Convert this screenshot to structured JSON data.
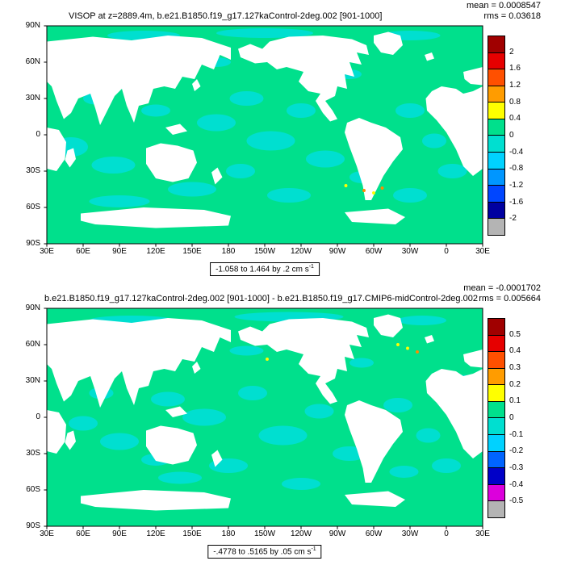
{
  "axes": {
    "lat_labels": [
      "90N",
      "60N",
      "30N",
      "0",
      "30S",
      "60S",
      "90S"
    ],
    "lon_labels": [
      "30E",
      "60E",
      "90E",
      "120E",
      "150E",
      "180",
      "150W",
      "120W",
      "90W",
      "60W",
      "30W",
      "0",
      "30E"
    ]
  },
  "map": {
    "ocean_color": "#00e08c",
    "patch_color": "#00dfd0",
    "land_color": "#ffffff",
    "land": [
      [
        [
          0,
          13
        ],
        [
          38,
          9
        ],
        [
          70,
          12
        ],
        [
          100,
          8
        ],
        [
          128,
          10
        ],
        [
          152,
          18
        ],
        [
          152,
          28
        ],
        [
          143,
          24
        ],
        [
          138,
          36
        ],
        [
          128,
          32
        ],
        [
          122,
          44
        ],
        [
          112,
          42
        ],
        [
          106,
          52
        ],
        [
          97,
          50
        ],
        [
          88,
          52
        ],
        [
          84,
          64
        ],
        [
          76,
          66
        ],
        [
          72,
          80
        ],
        [
          66,
          66
        ],
        [
          62,
          52
        ],
        [
          56,
          58
        ],
        [
          50,
          70
        ],
        [
          44,
          82
        ],
        [
          40,
          68
        ],
        [
          36,
          56
        ],
        [
          26,
          60
        ],
        [
          20,
          72
        ],
        [
          14,
          77
        ],
        [
          8,
          62
        ],
        [
          4,
          50
        ],
        [
          0,
          46
        ]
      ],
      [
        [
          120,
          48
        ],
        [
          124,
          44
        ],
        [
          127,
          50
        ],
        [
          122,
          54
        ]
      ],
      [
        [
          0,
          84
        ],
        [
          10,
          86
        ],
        [
          16,
          96
        ],
        [
          15,
          110
        ],
        [
          8,
          120
        ],
        [
          0,
          118
        ]
      ],
      [
        [
          17,
          103
        ],
        [
          22,
          101
        ],
        [
          24,
          110
        ],
        [
          19,
          117
        ],
        [
          15,
          111
        ]
      ],
      [
        [
          82,
          101
        ],
        [
          94,
          97
        ],
        [
          108,
          99
        ],
        [
          121,
          103
        ],
        [
          124,
          113
        ],
        [
          117,
          126
        ],
        [
          104,
          129
        ],
        [
          90,
          126
        ],
        [
          82,
          114
        ]
      ],
      [
        [
          98,
          84
        ],
        [
          110,
          81
        ],
        [
          116,
          87
        ],
        [
          104,
          90
        ]
      ],
      [
        [
          136,
          121
        ],
        [
          141,
          117
        ],
        [
          145,
          125
        ],
        [
          139,
          131
        ]
      ],
      [
        [
          158,
          19
        ],
        [
          168,
          15
        ],
        [
          178,
          19
        ],
        [
          184,
          13
        ],
        [
          200,
          9
        ],
        [
          228,
          8
        ],
        [
          252,
          11
        ],
        [
          264,
          16
        ],
        [
          266,
          24
        ],
        [
          256,
          22
        ],
        [
          260,
          32
        ],
        [
          250,
          30
        ],
        [
          254,
          42
        ],
        [
          246,
          40
        ],
        [
          248,
          52
        ],
        [
          240,
          50
        ],
        [
          238,
          58
        ],
        [
          230,
          62
        ],
        [
          236,
          70
        ],
        [
          240,
          77
        ],
        [
          234,
          79
        ],
        [
          228,
          72
        ],
        [
          222,
          62
        ],
        [
          226,
          56
        ],
        [
          216,
          54
        ],
        [
          208,
          46
        ],
        [
          212,
          38
        ],
        [
          198,
          34
        ],
        [
          190,
          36
        ],
        [
          182,
          30
        ],
        [
          172,
          31
        ],
        [
          160,
          26
        ]
      ],
      [
        [
          270,
          8
        ],
        [
          282,
          5
        ],
        [
          292,
          8
        ],
        [
          294,
          16
        ],
        [
          286,
          24
        ],
        [
          276,
          22
        ],
        [
          270,
          14
        ]
      ],
      [
        [
          312,
          24
        ],
        [
          318,
          22
        ],
        [
          320,
          27
        ],
        [
          314,
          29
        ]
      ],
      [
        [
          248,
          80
        ],
        [
          258,
          76
        ],
        [
          268,
          80
        ],
        [
          280,
          84
        ],
        [
          292,
          92
        ],
        [
          294,
          102
        ],
        [
          286,
          112
        ],
        [
          278,
          124
        ],
        [
          272,
          136
        ],
        [
          268,
          144
        ],
        [
          263,
          144
        ],
        [
          261,
          132
        ],
        [
          256,
          116
        ],
        [
          250,
          100
        ],
        [
          246,
          88
        ]
      ],
      [
        [
          313,
          60
        ],
        [
          318,
          54
        ],
        [
          326,
          50
        ],
        [
          338,
          52
        ],
        [
          344,
          56
        ],
        [
          352,
          54
        ],
        [
          360,
          50
        ],
        [
          360,
          118
        ],
        [
          352,
          124
        ],
        [
          344,
          116
        ],
        [
          338,
          102
        ],
        [
          330,
          88
        ],
        [
          322,
          78
        ],
        [
          314,
          70
        ]
      ],
      [
        [
          344,
          38
        ],
        [
          352,
          36
        ],
        [
          360,
          34
        ],
        [
          360,
          49
        ],
        [
          350,
          48
        ],
        [
          345,
          44
        ]
      ],
      [
        [
          28,
          155
        ],
        [
          80,
          150
        ],
        [
          130,
          152
        ],
        [
          152,
          157
        ],
        [
          150,
          165
        ],
        [
          90,
          167
        ],
        [
          40,
          164
        ],
        [
          28,
          161
        ]
      ],
      [
        [
          246,
          154
        ],
        [
          282,
          151
        ],
        [
          296,
          158
        ],
        [
          288,
          164
        ],
        [
          252,
          162
        ]
      ]
    ]
  },
  "panels": [
    {
      "title": "VISOP at z=2889.4m, b.e21.B1850.f19_g17.127kaControl-2deg.002 [901-1000]",
      "mean_text": "mean = 0.0008547",
      "rms_text": "rms = 0.03618",
      "range_text": "-1.058 to 1.464 by .2 cm s",
      "range_exp": "-1",
      "colorbar": {
        "labels": [
          "2",
          "1.6",
          "1.2",
          "0.8",
          "0.4",
          "0",
          "-0.4",
          "-0.8",
          "-1.2",
          "-1.6",
          "-2"
        ],
        "colors": [
          "#a00000",
          "#e60000",
          "#ff5000",
          "#ff9c00",
          "#ffff00",
          "#00e08c",
          "#00dfd0",
          "#00d2ff",
          "#0096ff",
          "#0046ff",
          "#0000a0",
          "#b4b4b4"
        ]
      },
      "patches": [
        [
          20,
          100,
          14,
          8
        ],
        [
          55,
          115,
          18,
          7
        ],
        [
          40,
          60,
          10,
          5
        ],
        [
          90,
          70,
          12,
          5
        ],
        [
          140,
          80,
          16,
          7
        ],
        [
          165,
          60,
          14,
          6
        ],
        [
          185,
          95,
          20,
          8
        ],
        [
          210,
          70,
          12,
          6
        ],
        [
          230,
          110,
          16,
          7
        ],
        [
          160,
          120,
          12,
          6
        ],
        [
          120,
          135,
          20,
          6
        ],
        [
          200,
          140,
          18,
          6
        ],
        [
          260,
          125,
          10,
          5
        ],
        [
          300,
          70,
          12,
          6
        ],
        [
          320,
          95,
          10,
          6
        ],
        [
          335,
          120,
          12,
          6
        ],
        [
          300,
          140,
          14,
          6
        ],
        [
          80,
          8,
          30,
          4
        ],
        [
          180,
          6,
          40,
          4
        ],
        [
          300,
          8,
          25,
          4
        ],
        [
          60,
          145,
          25,
          5
        ],
        [
          250,
          40,
          10,
          4
        ],
        [
          350,
          75,
          8,
          5
        ],
        [
          140,
          30,
          12,
          4
        ]
      ],
      "specks": [
        [
          262,
          136,
          "#ff8c00"
        ],
        [
          270,
          138,
          "#ffff00"
        ],
        [
          277,
          134,
          "#ff8c00"
        ],
        [
          247,
          132,
          "#ffff00"
        ]
      ]
    },
    {
      "title": "b.e21.B1850.f19_g17.127kaControl-2deg.002 [901-1000] - b.e21.B1850.f19_g17.CMIP6-midControl-2deg.002",
      "mean_text": "mean = -0.0001702",
      "rms_text": "rms = 0.005664",
      "range_text": "-.4778 to .5165 by .05 cm s",
      "range_exp": "-1",
      "colorbar": {
        "labels": [
          "0.5",
          "0.4",
          "0.3",
          "0.2",
          "0.1",
          "0",
          "-0.1",
          "-0.2",
          "-0.3",
          "-0.4",
          "-0.5"
        ],
        "colors": [
          "#a00000",
          "#e60000",
          "#ff5000",
          "#ff9c00",
          "#ffff00",
          "#00e08c",
          "#00dfd0",
          "#00d2ff",
          "#0064ff",
          "#0000c8",
          "#dc00dc",
          "#b4b4b4"
        ]
      },
      "patches": [
        [
          30,
          95,
          12,
          6
        ],
        [
          60,
          110,
          16,
          7
        ],
        [
          100,
          75,
          14,
          6
        ],
        [
          130,
          90,
          18,
          7
        ],
        [
          170,
          70,
          12,
          6
        ],
        [
          195,
          105,
          20,
          8
        ],
        [
          225,
          85,
          12,
          6
        ],
        [
          250,
          120,
          14,
          6
        ],
        [
          150,
          130,
          16,
          6
        ],
        [
          110,
          140,
          18,
          5
        ],
        [
          210,
          145,
          16,
          5
        ],
        [
          290,
          80,
          12,
          6
        ],
        [
          315,
          105,
          10,
          6
        ],
        [
          330,
          130,
          12,
          6
        ],
        [
          295,
          135,
          12,
          5
        ],
        [
          70,
          10,
          35,
          4
        ],
        [
          200,
          7,
          45,
          4
        ],
        [
          310,
          10,
          20,
          4
        ],
        [
          45,
          70,
          10,
          5
        ],
        [
          260,
          45,
          10,
          4
        ],
        [
          345,
          60,
          8,
          5
        ],
        [
          165,
          35,
          14,
          4
        ],
        [
          90,
          125,
          12,
          5
        ]
      ],
      "specks": [
        [
          298,
          33,
          "#ffff00"
        ],
        [
          306,
          36,
          "#ff8c00"
        ],
        [
          290,
          30,
          "#ffff00"
        ],
        [
          182,
          42,
          "#ffff00"
        ]
      ]
    }
  ],
  "chart_data": [
    {
      "type": "heatmap",
      "title": "VISOP at z=2889.4m, b.e21.B1850.f19_g17.127kaControl-2deg.002 [901-1000]",
      "mean": 0.0008547,
      "rms": 0.03618,
      "field_min": -1.058,
      "field_max": 1.464,
      "contour_interval": 0.2,
      "units": "cm s^-1",
      "projection": "cylindrical-equidistant, 180-centered",
      "x_ticks": [
        "30E",
        "60E",
        "90E",
        "120E",
        "150E",
        "180",
        "150W",
        "120W",
        "90W",
        "60W",
        "30W",
        "0",
        "30E"
      ],
      "y_ticks": [
        "90N",
        "60N",
        "30N",
        "0",
        "30S",
        "60S",
        "90S"
      ],
      "colorbar_ticks": [
        2,
        1.6,
        1.2,
        0.8,
        0.4,
        0,
        -0.4,
        -0.8,
        -1.2,
        -1.6,
        -2
      ],
      "legend_position": "right",
      "grid": false
    },
    {
      "type": "heatmap",
      "title": "b.e21.B1850.f19_g17.127kaControl-2deg.002 [901-1000] - b.e21.B1850.f19_g17.CMIP6-midControl-2deg.002",
      "mean": -0.0001702,
      "rms": 0.005664,
      "field_min": -0.4778,
      "field_max": 0.5165,
      "contour_interval": 0.05,
      "units": "cm s^-1",
      "projection": "cylindrical-equidistant, 180-centered",
      "x_ticks": [
        "30E",
        "60E",
        "90E",
        "120E",
        "150E",
        "180",
        "150W",
        "120W",
        "90W",
        "60W",
        "30W",
        "0",
        "30E"
      ],
      "y_ticks": [
        "90N",
        "60N",
        "30N",
        "0",
        "30S",
        "60S",
        "90S"
      ],
      "colorbar_ticks": [
        0.5,
        0.4,
        0.3,
        0.2,
        0.1,
        0,
        -0.1,
        -0.2,
        -0.3,
        -0.4,
        -0.5
      ],
      "legend_position": "right",
      "grid": false
    }
  ]
}
